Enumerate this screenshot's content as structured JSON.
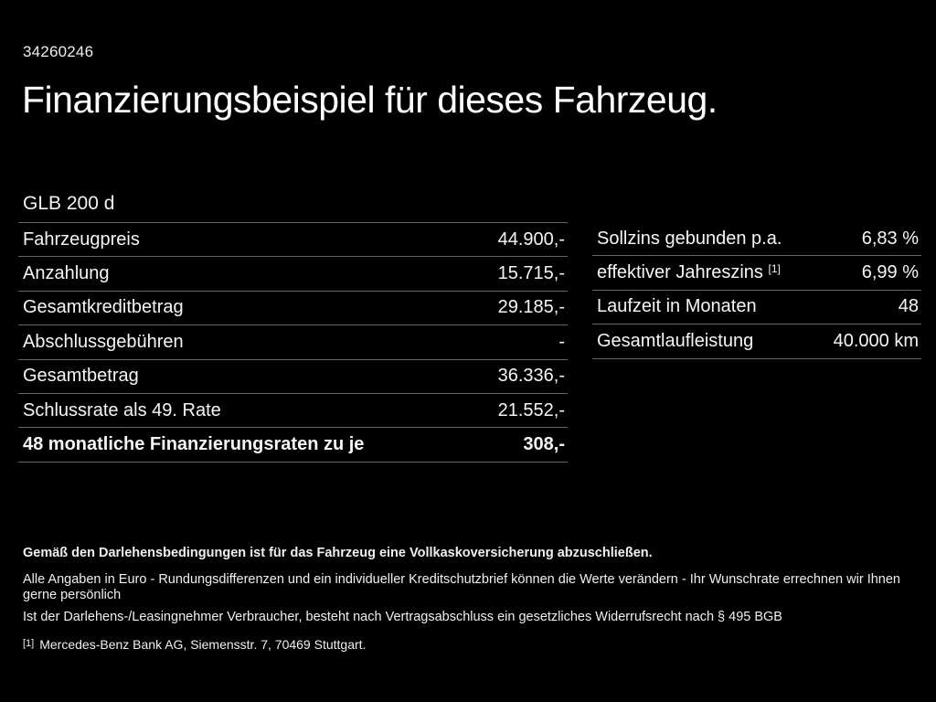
{
  "page": {
    "id_number": "34260246",
    "title": "Finanzierungsbeispiel für dieses Fahrzeug.",
    "model": "GLB 200 d"
  },
  "left_table": {
    "rows": [
      {
        "label": "Fahrzeugpreis",
        "value": "44.900,-"
      },
      {
        "label": "Anzahlung",
        "value": "15.715,-"
      },
      {
        "label": "Gesamtkreditbetrag",
        "value": "29.185,-"
      },
      {
        "label": "Abschlussgebühren",
        "value": "-"
      },
      {
        "label": "Gesamtbetrag",
        "value": "36.336,-"
      },
      {
        "label": "Schlussrate als 49. Rate",
        "value": "21.552,-"
      },
      {
        "label": "48 monatliche Finanzierungsraten zu je",
        "value": "308,-"
      }
    ]
  },
  "right_table": {
    "rows": [
      {
        "label": "Sollzins gebunden p.a.",
        "value": "6,83 %"
      },
      {
        "label": "effektiver Jahreszins",
        "sup": "[1]",
        "value": "6,99 %"
      },
      {
        "label": "Laufzeit in Monaten",
        "value": "48"
      },
      {
        "label": "Gesamtlaufleistung",
        "value": "40.000 km"
      }
    ]
  },
  "footer": {
    "bold_note": "Gemäß den Darlehensbedingungen ist für das Fahrzeug eine Vollkaskoversicherung abzuschließen.",
    "note1": "Alle Angaben in Euro - Rundungsdifferenzen und ein individueller Kreditschutzbrief können die Werte verändern - Ihr Wunschrate errechnen wir Ihnen gerne persönlich",
    "note2": "Ist der Darlehens-/Leasingnehmer Verbraucher, besteht nach Vertragsabschluss ein gesetzliches Widerrufsrecht nach § 495 BGB",
    "footnote_marker": "[1]",
    "footnote_text": "Mercedes-Benz Bank AG, Siemensstr. 7, 70469 Stuttgart."
  },
  "colors": {
    "background": "#000000",
    "text": "#f5f5f5",
    "divider": "#686868"
  }
}
